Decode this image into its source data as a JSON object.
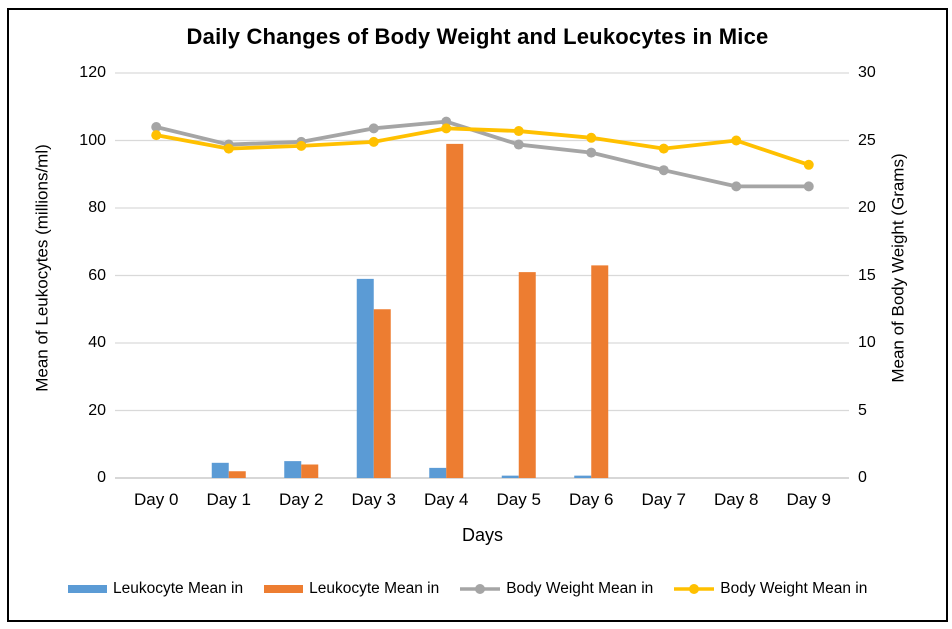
{
  "chart_data": {
    "type": "combo-bar-line",
    "title": "Daily Changes of Body Weight and Leukocytes in Mice",
    "categories": [
      "Day 0",
      "Day 1",
      "Day 2",
      "Day 3",
      "Day 4",
      "Day 5",
      "Day 6",
      "Day 7",
      "Day 8",
      "Day 9"
    ],
    "xlabel": "Days",
    "left_axis": {
      "label": "Mean of Leukocytes (millions/ml)",
      "min": 0,
      "max": 120,
      "step": 20,
      "ticks": [
        "0",
        "20",
        "40",
        "60",
        "80",
        "100",
        "120"
      ]
    },
    "right_axis": {
      "label": "Mean of Body Weight (Grams)",
      "min": 0,
      "max": 30,
      "step": 5,
      "ticks": [
        "0",
        "5",
        "10",
        "15",
        "20",
        "25",
        "30"
      ]
    },
    "series": [
      {
        "name": "Leukocyte Mean in",
        "type": "bar",
        "axis": "left",
        "color": "#5B9BD5",
        "values": [
          0,
          4.5,
          5,
          59,
          3,
          0.7,
          0.7,
          0,
          0,
          0
        ]
      },
      {
        "name": "Leukocyte Mean in",
        "type": "bar",
        "axis": "left",
        "color": "#ED7D31",
        "values": [
          0,
          2,
          4,
          50,
          99,
          61,
          63,
          0,
          0,
          0
        ]
      },
      {
        "name": "Body Weight Mean in",
        "type": "line",
        "axis": "right",
        "color": "#A5A5A5",
        "values": [
          26.0,
          24.7,
          24.9,
          25.9,
          26.4,
          24.7,
          24.1,
          22.8,
          21.6,
          21.6
        ]
      },
      {
        "name": "Body Weight Mean in",
        "type": "line",
        "axis": "right",
        "color": "#FFC000",
        "values": [
          25.4,
          24.4,
          24.6,
          24.9,
          25.9,
          25.7,
          25.2,
          24.4,
          25.0,
          23.2
        ]
      }
    ],
    "grid": true,
    "legend_position": "bottom",
    "colors": {
      "grid": "#D9D9D9",
      "axis_line": "#BFBFBF",
      "text": "#000000",
      "border": "#000000",
      "background": "#FFFFFF"
    }
  }
}
